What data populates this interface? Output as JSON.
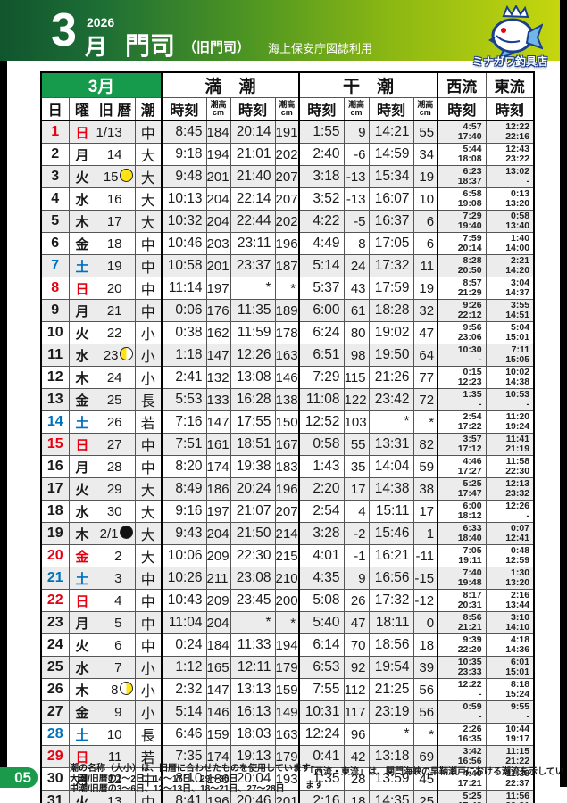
{
  "header": {
    "month_number": "3",
    "month_unit": "月",
    "year": "2026",
    "place": "門司",
    "place_note": "（旧門司）",
    "source_note": "海上保安庁図誌利用",
    "shop_name": "ミナガワ釣具店"
  },
  "table": {
    "month_label": "3月",
    "high_tide_label": "満　潮",
    "low_tide_label": "干　潮",
    "west_label": "西流",
    "east_label": "東流",
    "col_day": "日",
    "col_weekday": "曜",
    "col_lunar": "旧 暦",
    "col_shio": "潮",
    "col_time": "時刻",
    "col_height": "潮高",
    "col_height_unit": "cm",
    "rows": [
      {
        "day": "1",
        "weekday": "日",
        "color": "red",
        "lunar": "1/13",
        "moon": null,
        "shio": "中",
        "high": [
          "8:45",
          "184",
          "20:14",
          "191"
        ],
        "low": [
          "1:55",
          "9",
          "14:21",
          "55"
        ],
        "west": [
          "4:57",
          "17:40"
        ],
        "east": [
          "12:22",
          "22:16"
        ]
      },
      {
        "day": "2",
        "weekday": "月",
        "color": "",
        "lunar": "14",
        "moon": null,
        "shio": "大",
        "high": [
          "9:18",
          "194",
          "21:01",
          "202"
        ],
        "low": [
          "2:40",
          "-6",
          "14:59",
          "34"
        ],
        "west": [
          "5:44",
          "18:08"
        ],
        "east": [
          "12:43",
          "23:22"
        ]
      },
      {
        "day": "3",
        "weekday": "火",
        "color": "",
        "lunar": "15",
        "moon": "full",
        "shio": "大",
        "high": [
          "9:48",
          "201",
          "21:40",
          "207"
        ],
        "low": [
          "3:18",
          "-13",
          "15:34",
          "19"
        ],
        "west": [
          "6:23",
          "18:37"
        ],
        "east": [
          "13:02",
          "-"
        ]
      },
      {
        "day": "4",
        "weekday": "水",
        "color": "",
        "lunar": "16",
        "moon": null,
        "shio": "大",
        "high": [
          "10:13",
          "204",
          "22:14",
          "207"
        ],
        "low": [
          "3:52",
          "-13",
          "16:07",
          "10"
        ],
        "west": [
          "6:58",
          "19:08"
        ],
        "east": [
          "0:13",
          "13:20"
        ]
      },
      {
        "day": "5",
        "weekday": "木",
        "color": "",
        "lunar": "17",
        "moon": null,
        "shio": "大",
        "high": [
          "10:32",
          "204",
          "22:44",
          "202"
        ],
        "low": [
          "4:22",
          "-5",
          "16:37",
          "6"
        ],
        "west": [
          "7:29",
          "19:40"
        ],
        "east": [
          "0:58",
          "13:40"
        ]
      },
      {
        "day": "6",
        "weekday": "金",
        "color": "",
        "lunar": "18",
        "moon": null,
        "shio": "中",
        "high": [
          "10:46",
          "203",
          "23:11",
          "196"
        ],
        "low": [
          "4:49",
          "8",
          "17:05",
          "6"
        ],
        "west": [
          "7:59",
          "20:14"
        ],
        "east": [
          "1:40",
          "14:00"
        ]
      },
      {
        "day": "7",
        "weekday": "土",
        "color": "blue",
        "lunar": "19",
        "moon": null,
        "shio": "中",
        "high": [
          "10:58",
          "201",
          "23:37",
          "187"
        ],
        "low": [
          "5:14",
          "24",
          "17:32",
          "11"
        ],
        "west": [
          "8:28",
          "20:50"
        ],
        "east": [
          "2:21",
          "14:20"
        ]
      },
      {
        "day": "8",
        "weekday": "日",
        "color": "red",
        "lunar": "20",
        "moon": null,
        "shio": "中",
        "high": [
          "11:14",
          "197",
          "*",
          "*"
        ],
        "low": [
          "5:37",
          "43",
          "17:59",
          "19"
        ],
        "west": [
          "8:57",
          "21:29"
        ],
        "east": [
          "3:04",
          "14:37"
        ]
      },
      {
        "day": "9",
        "weekday": "月",
        "color": "",
        "lunar": "21",
        "moon": null,
        "shio": "中",
        "high": [
          "0:06",
          "176",
          "11:35",
          "189"
        ],
        "low": [
          "6:00",
          "61",
          "18:28",
          "32"
        ],
        "west": [
          "9:26",
          "22:12"
        ],
        "east": [
          "3:55",
          "14:51"
        ]
      },
      {
        "day": "10",
        "weekday": "火",
        "color": "",
        "lunar": "22",
        "moon": null,
        "shio": "小",
        "high": [
          "0:38",
          "162",
          "11:59",
          "178"
        ],
        "low": [
          "6:24",
          "80",
          "19:02",
          "47"
        ],
        "west": [
          "9:56",
          "23:06"
        ],
        "east": [
          "5:04",
          "15:01"
        ]
      },
      {
        "day": "11",
        "weekday": "水",
        "color": "",
        "lunar": "23",
        "moon": "last",
        "shio": "小",
        "high": [
          "1:18",
          "147",
          "12:26",
          "163"
        ],
        "low": [
          "6:51",
          "98",
          "19:50",
          "64"
        ],
        "west": [
          "10:30",
          "-"
        ],
        "east": [
          "7:11",
          "15:05"
        ]
      },
      {
        "day": "12",
        "weekday": "木",
        "color": "",
        "lunar": "24",
        "moon": null,
        "shio": "小",
        "high": [
          "2:41",
          "132",
          "13:08",
          "146"
        ],
        "low": [
          "7:29",
          "115",
          "21:26",
          "77"
        ],
        "west": [
          "0:15",
          "12:23"
        ],
        "east": [
          "10:02",
          "14:38"
        ]
      },
      {
        "day": "13",
        "weekday": "金",
        "color": "",
        "lunar": "25",
        "moon": null,
        "shio": "長",
        "high": [
          "5:53",
          "133",
          "16:28",
          "138"
        ],
        "low": [
          "11:08",
          "122",
          "23:42",
          "72"
        ],
        "west": [
          "1:35",
          "-"
        ],
        "east": [
          "10:53",
          "-"
        ]
      },
      {
        "day": "14",
        "weekday": "土",
        "color": "blue",
        "lunar": "26",
        "moon": null,
        "shio": "若",
        "high": [
          "7:16",
          "147",
          "17:55",
          "150"
        ],
        "low": [
          "12:52",
          "103",
          "*",
          "*"
        ],
        "west": [
          "2:54",
          "17:22"
        ],
        "east": [
          "11:20",
          "19:24"
        ]
      },
      {
        "day": "15",
        "weekday": "日",
        "color": "red",
        "lunar": "27",
        "moon": null,
        "shio": "中",
        "high": [
          "7:51",
          "161",
          "18:51",
          "167"
        ],
        "low": [
          "0:58",
          "55",
          "13:31",
          "82"
        ],
        "west": [
          "3:57",
          "17:12"
        ],
        "east": [
          "11:41",
          "21:19"
        ]
      },
      {
        "day": "16",
        "weekday": "月",
        "color": "",
        "lunar": "28",
        "moon": null,
        "shio": "中",
        "high": [
          "8:20",
          "174",
          "19:38",
          "183"
        ],
        "low": [
          "1:43",
          "35",
          "14:04",
          "59"
        ],
        "west": [
          "4:46",
          "17:27"
        ],
        "east": [
          "11:58",
          "22:30"
        ]
      },
      {
        "day": "17",
        "weekday": "火",
        "color": "",
        "lunar": "29",
        "moon": null,
        "shio": "大",
        "high": [
          "8:49",
          "186",
          "20:24",
          "196"
        ],
        "low": [
          "2:20",
          "17",
          "14:38",
          "38"
        ],
        "west": [
          "5:25",
          "17:47"
        ],
        "east": [
          "12:13",
          "23:32"
        ]
      },
      {
        "day": "18",
        "weekday": "水",
        "color": "",
        "lunar": "30",
        "moon": null,
        "shio": "大",
        "high": [
          "9:16",
          "197",
          "21:07",
          "207"
        ],
        "low": [
          "2:54",
          "4",
          "15:11",
          "17"
        ],
        "west": [
          "6:00",
          "18:12"
        ],
        "east": [
          "12:26",
          "-"
        ]
      },
      {
        "day": "19",
        "weekday": "木",
        "color": "",
        "lunar": "2/1",
        "moon": "new",
        "shio": "大",
        "high": [
          "9:43",
          "204",
          "21:50",
          "214"
        ],
        "low": [
          "3:28",
          "-2",
          "15:46",
          "1"
        ],
        "west": [
          "6:33",
          "18:40"
        ],
        "east": [
          "0:07",
          "12:41"
        ]
      },
      {
        "day": "20",
        "weekday": "金",
        "color": "red",
        "lunar": "2",
        "moon": null,
        "shio": "大",
        "high": [
          "10:06",
          "209",
          "22:30",
          "215"
        ],
        "low": [
          "4:01",
          "-1",
          "16:21",
          "-11"
        ],
        "west": [
          "7:05",
          "19:11"
        ],
        "east": [
          "0:48",
          "12:59"
        ]
      },
      {
        "day": "21",
        "weekday": "土",
        "color": "blue",
        "lunar": "3",
        "moon": null,
        "shio": "中",
        "high": [
          "10:26",
          "211",
          "23:08",
          "210"
        ],
        "low": [
          "4:35",
          "9",
          "16:56",
          "-15"
        ],
        "west": [
          "7:40",
          "19:48"
        ],
        "east": [
          "1:30",
          "13:20"
        ]
      },
      {
        "day": "22",
        "weekday": "日",
        "color": "red",
        "lunar": "4",
        "moon": null,
        "shio": "中",
        "high": [
          "10:43",
          "209",
          "23:45",
          "200"
        ],
        "low": [
          "5:08",
          "26",
          "17:32",
          "-12"
        ],
        "west": [
          "8:17",
          "20:31"
        ],
        "east": [
          "2:16",
          "13:44"
        ]
      },
      {
        "day": "23",
        "weekday": "月",
        "color": "",
        "lunar": "5",
        "moon": null,
        "shio": "中",
        "high": [
          "11:04",
          "204",
          "*",
          "*"
        ],
        "low": [
          "5:40",
          "47",
          "18:11",
          "0"
        ],
        "west": [
          "8:56",
          "21:21"
        ],
        "east": [
          "3:10",
          "14:10"
        ]
      },
      {
        "day": "24",
        "weekday": "火",
        "color": "",
        "lunar": "6",
        "moon": null,
        "shio": "中",
        "high": [
          "0:24",
          "184",
          "11:33",
          "194"
        ],
        "low": [
          "6:14",
          "70",
          "18:56",
          "18"
        ],
        "west": [
          "9:39",
          "22:20"
        ],
        "east": [
          "4:18",
          "14:36"
        ]
      },
      {
        "day": "25",
        "weekday": "水",
        "color": "",
        "lunar": "7",
        "moon": null,
        "shio": "小",
        "high": [
          "1:12",
          "165",
          "12:11",
          "179"
        ],
        "low": [
          "6:53",
          "92",
          "19:54",
          "39"
        ],
        "west": [
          "10:35",
          "23:33"
        ],
        "east": [
          "6:01",
          "15:01"
        ]
      },
      {
        "day": "26",
        "weekday": "木",
        "color": "",
        "lunar": "8",
        "moon": "first",
        "shio": "小",
        "high": [
          "2:32",
          "147",
          "13:13",
          "159"
        ],
        "low": [
          "7:55",
          "112",
          "21:25",
          "56"
        ],
        "west": [
          "12:22",
          "-"
        ],
        "east": [
          "8:18",
          "15:24"
        ]
      },
      {
        "day": "27",
        "weekday": "金",
        "color": "",
        "lunar": "9",
        "moon": null,
        "shio": "小",
        "high": [
          "5:14",
          "146",
          "16:13",
          "149"
        ],
        "low": [
          "10:31",
          "117",
          "23:19",
          "56"
        ],
        "west": [
          "0:59",
          "-"
        ],
        "east": [
          "9:55",
          "-"
        ]
      },
      {
        "day": "28",
        "weekday": "土",
        "color": "blue",
        "lunar": "10",
        "moon": null,
        "shio": "長",
        "high": [
          "6:46",
          "159",
          "18:03",
          "163"
        ],
        "low": [
          "12:24",
          "96",
          "*",
          "*"
        ],
        "west": [
          "2:26",
          "16:35"
        ],
        "east": [
          "10:44",
          "19:17"
        ]
      },
      {
        "day": "29",
        "weekday": "日",
        "color": "red",
        "lunar": "11",
        "moon": null,
        "shio": "若",
        "high": [
          "7:35",
          "174",
          "19:13",
          "179"
        ],
        "low": [
          "0:41",
          "42",
          "13:18",
          "69"
        ],
        "west": [
          "3:42",
          "16:56"
        ],
        "east": [
          "11:15",
          "21:22"
        ]
      },
      {
        "day": "30",
        "weekday": "月",
        "color": "",
        "lunar": "12",
        "moon": null,
        "shio": "中",
        "high": [
          "8:10",
          "186",
          "20:04",
          "193"
        ],
        "low": [
          "1:35",
          "28",
          "13:59",
          "45"
        ],
        "west": [
          "4:40",
          "17:21"
        ],
        "east": [
          "11:38",
          "22:37"
        ]
      },
      {
        "day": "31",
        "weekday": "火",
        "color": "",
        "lunar": "13",
        "moon": null,
        "shio": "中",
        "high": [
          "8:41",
          "196",
          "20:46",
          "201"
        ],
        "low": [
          "2:16",
          "18",
          "14:35",
          "25"
        ],
        "west": [
          "5:25",
          "17:48"
        ],
        "east": [
          "11:56",
          "23:31"
        ]
      }
    ]
  },
  "footer": {
    "page_number": "05",
    "note1": "潮の名称（大小）は、旧暦に合わせたものを使用しています",
    "note2": "大潮/旧暦の1～2日、14～17日、29～30日",
    "note3": "中潮/旧暦の3～6日、12～13日、18～21日、27～28日",
    "note_right": "「西流・東流」は、関門海峡の早鞆瀬戸における潮流を示しています"
  },
  "colors": {
    "banner_dark_green": "#11552e",
    "banner_yellow_green": "#c6d60e",
    "header_green": "#169a4b",
    "sunday_red": "#e60012",
    "saturday_blue": "#0072bc",
    "moon_yellow": "#ffe415",
    "row_alt_gray": "#ececec"
  }
}
